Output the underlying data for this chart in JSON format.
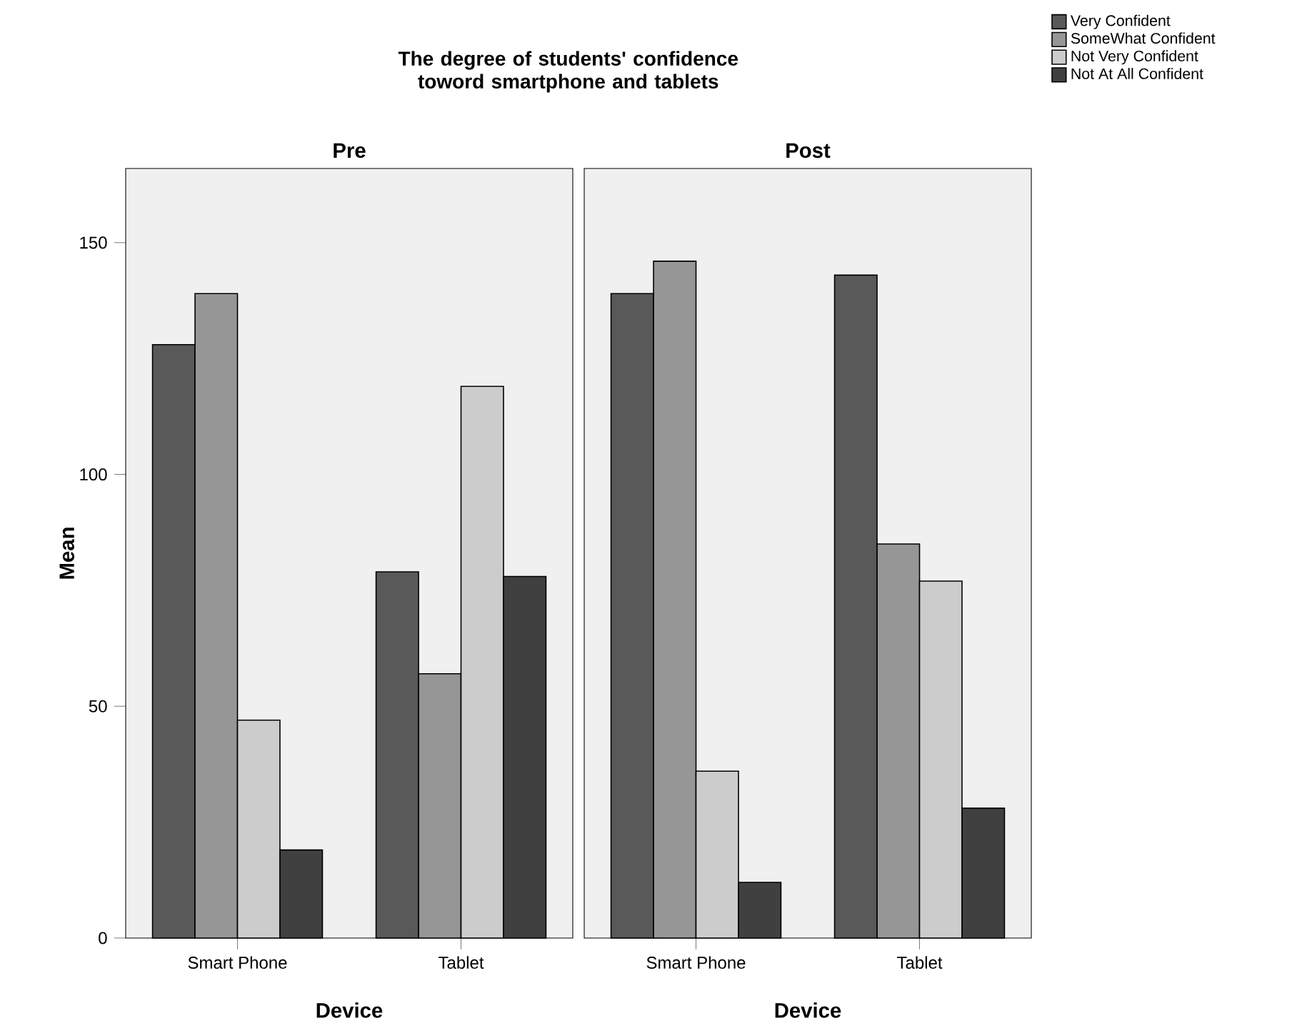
{
  "chart_data": [
    {
      "type": "bar",
      "title": "The degree of students' confidence toword smartphone and tablets",
      "subtitle": "Pre",
      "xlabel": "Device",
      "ylabel": "Mean",
      "categories": [
        "Smart Phone",
        "Tablet"
      ],
      "series": [
        {
          "name": "Very Confident",
          "color": "#595959",
          "values": [
            128,
            79
          ]
        },
        {
          "name": "SomeWhat Confident",
          "color": "#969696",
          "values": [
            139,
            57
          ]
        },
        {
          "name": "Not Very Confident",
          "color": "#cccccc",
          "values": [
            47,
            119
          ]
        },
        {
          "name": "Not At All Confident",
          "color": "#404040",
          "values": [
            19,
            78
          ]
        }
      ],
      "ylim": [
        0,
        166
      ],
      "yticks": [
        0,
        50,
        100,
        150
      ],
      "legend": "top right"
    },
    {
      "type": "bar",
      "subtitle": "Post",
      "xlabel": "Device",
      "categories": [
        "Smart Phone",
        "Tablet"
      ],
      "series": [
        {
          "color": "#595959",
          "values": [
            139,
            143
          ]
        },
        {
          "color": "#969696",
          "values": [
            146,
            85
          ]
        },
        {
          "color": "#cccccc",
          "values": [
            36,
            77
          ]
        },
        {
          "color": "#404040",
          "values": [
            12,
            28
          ]
        }
      ],
      "ylim": [
        0,
        166
      ],
      "tick_labels": "x"
    }
  ]
}
